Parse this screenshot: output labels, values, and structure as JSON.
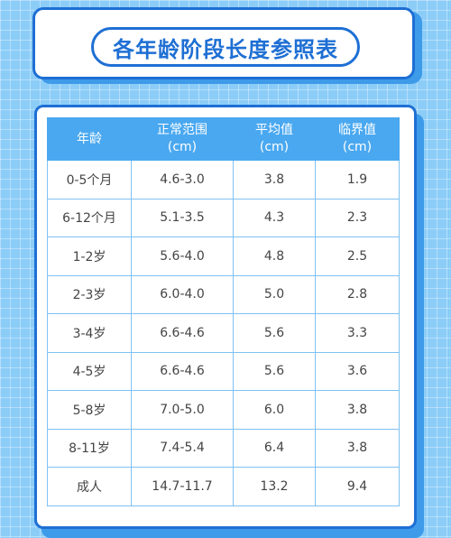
{
  "title": "各年龄阶段长度参照表",
  "table": {
    "headers": [
      {
        "label": "年龄",
        "unit": ""
      },
      {
        "label": "正常范围",
        "unit": "(cm)"
      },
      {
        "label": "平均值",
        "unit": "(cm)"
      },
      {
        "label": "临界值",
        "unit": "(cm)"
      }
    ],
    "rows": [
      [
        "0-5个月",
        "4.6-3.0",
        "3.8",
        "1.9"
      ],
      [
        "6-12个月",
        "5.1-3.5",
        "4.3",
        "2.3"
      ],
      [
        "1-2岁",
        "5.6-4.0",
        "4.8",
        "2.5"
      ],
      [
        "2-3岁",
        "6.0-4.0",
        "5.0",
        "2.8"
      ],
      [
        "3-4岁",
        "6.6-4.6",
        "5.6",
        "3.3"
      ],
      [
        "4-5岁",
        "6.6-4.6",
        "5.6",
        "3.6"
      ],
      [
        "5-8岁",
        "7.0-5.0",
        "6.0",
        "3.8"
      ],
      [
        "8-11岁",
        "7.4-5.4",
        "6.4",
        "3.8"
      ],
      [
        "成人",
        "14.7-11.7",
        "13.2",
        "9.4"
      ]
    ]
  }
}
